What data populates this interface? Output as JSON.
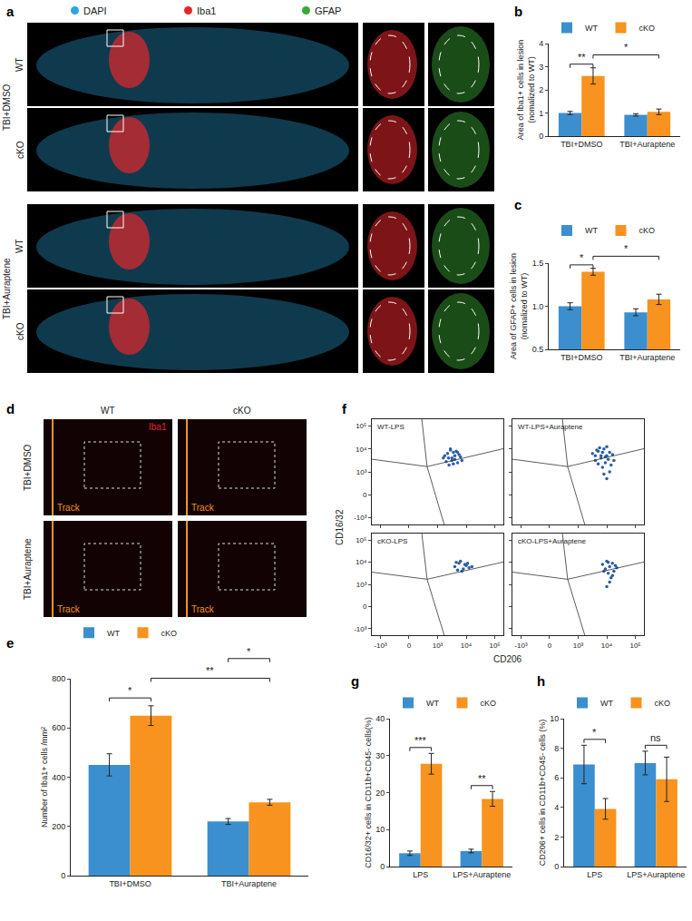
{
  "chart_data": [
    {
      "panel": "b",
      "type": "bar",
      "y_label": "Area of Iba1+ cells in lesion\n(nomalized to WT)",
      "categories": [
        "TBI+DMSO",
        "TBI+Auraptene"
      ],
      "series": [
        {
          "name": "WT",
          "color": "#3b8fcf",
          "values": [
            1.0,
            0.92
          ],
          "errors": [
            0.07,
            0.05
          ]
        },
        {
          "name": "cKO",
          "color": "#f7931e",
          "values": [
            2.6,
            1.05
          ],
          "errors": [
            0.35,
            0.12
          ]
        }
      ],
      "ylim": [
        0,
        4
      ],
      "yticks": [
        0,
        1,
        2,
        3,
        4
      ],
      "grid": false,
      "legend": "top",
      "annotations": [
        {
          "text": "**",
          "between": [
            [
              "WT",
              "TBI+DMSO"
            ],
            [
              "cKO",
              "TBI+DMSO"
            ]
          ]
        },
        {
          "text": "*",
          "between": [
            [
              "cKO",
              "TBI+DMSO"
            ],
            [
              "cKO",
              "TBI+Auraptene"
            ]
          ]
        }
      ]
    },
    {
      "panel": "c",
      "type": "bar",
      "y_label": "Area of GFAP+ cells in lesion\n(nomalized to WT)",
      "categories": [
        "TBI+DMSO",
        "TBI+Auraptene"
      ],
      "series": [
        {
          "name": "WT",
          "color": "#3b8fcf",
          "values": [
            1.0,
            0.93
          ],
          "errors": [
            0.04,
            0.04
          ]
        },
        {
          "name": "cKO",
          "color": "#f7931e",
          "values": [
            1.4,
            1.08
          ],
          "errors": [
            0.04,
            0.06
          ]
        }
      ],
      "ylim": [
        0.5,
        1.5
      ],
      "yticks": [
        0.5,
        {
          "value": 1,
          "label": "1.0"
        },
        1.5
      ],
      "grid": false,
      "legend": "top",
      "annotations": [
        {
          "text": "*",
          "between": [
            [
              "WT",
              "TBI+DMSO"
            ],
            [
              "cKO",
              "TBI+DMSO"
            ]
          ]
        },
        {
          "text": "*",
          "between": [
            [
              "cKO",
              "TBI+DMSO"
            ],
            [
              "cKO",
              "TBI+Auraptene"
            ]
          ]
        }
      ]
    },
    {
      "panel": "e",
      "type": "bar",
      "y_label": "Number of Iba1+ cells /mm²",
      "categories": [
        "TBI+DMSO",
        "TBI+Auraptene"
      ],
      "series": [
        {
          "name": "WT",
          "color": "#3b8fcf",
          "values": [
            450,
            220
          ],
          "errors": [
            45,
            12
          ]
        },
        {
          "name": "cKO",
          "color": "#f7931e",
          "values": [
            650,
            298
          ],
          "errors": [
            40,
            12
          ]
        }
      ],
      "ylim": [
        0,
        800
      ],
      "yticks": [
        0,
        200,
        400,
        600,
        800
      ],
      "grid": false,
      "legend": "top",
      "annotations": [
        {
          "text": "*",
          "between": [
            [
              "WT",
              "TBI+DMSO"
            ],
            [
              "cKO",
              "TBI+DMSO"
            ]
          ]
        },
        {
          "text": "**",
          "between": [
            [
              "cKO",
              "TBI+DMSO"
            ],
            [
              "cKO",
              "TBI+Auraptene"
            ]
          ]
        },
        {
          "text": "*",
          "between": [
            [
              "WT",
              "TBI+Auraptene"
            ],
            [
              "cKO",
              "TBI+Auraptene"
            ]
          ]
        }
      ]
    },
    {
      "panel": "f",
      "type": "scatter",
      "x_label": "CD206",
      "y_label": "CD16/32",
      "xlim": [
        -1.3,
        3.3
      ],
      "ylim": [
        -1.3,
        3.3
      ],
      "xticks": [
        {
          "value": -1,
          "label": "-10³"
        },
        0,
        {
          "value": 1,
          "label": "10³"
        },
        {
          "value": 2,
          "label": "10⁴"
        },
        {
          "value": 3,
          "label": "10⁵"
        }
      ],
      "yticks": [
        {
          "value": -1,
          "label": "-10³"
        },
        0,
        {
          "value": 1,
          "label": "10³"
        },
        {
          "value": 2,
          "label": "10⁴"
        },
        {
          "value": 3,
          "label": "10⁵"
        }
      ],
      "grid": false,
      "marker": "circle",
      "color": "#2a5caa",
      "subplots": [
        {
          "title": "WT-LPS",
          "x": [
            1.2,
            1.35,
            1.5,
            1.6,
            1.45,
            1.7,
            1.8,
            1.55,
            1.3,
            1.65,
            1.4,
            1.75,
            1.5,
            1.6,
            1.25,
            1.85,
            1.45,
            1.7,
            1.55,
            1.38
          ],
          "y": [
            1.6,
            1.8,
            1.5,
            1.7,
            1.95,
            1.4,
            1.65,
            1.85,
            1.45,
            1.9,
            1.3,
            1.75,
            1.6,
            1.55,
            1.7,
            1.5,
            2.0,
            1.85,
            1.35,
            1.6
          ]
        },
        {
          "title": "WT-LPS+Auraptene",
          "x": [
            1.5,
            1.7,
            1.9,
            2.0,
            1.8,
            2.1,
            1.6,
            1.95,
            2.2,
            1.75,
            1.85,
            2.05,
            1.65,
            1.9,
            2.15,
            1.8,
            2.0,
            1.7,
            1.95,
            2.1,
            1.85,
            2.25,
            1.6,
            2.0
          ],
          "y": [
            1.8,
            1.9,
            2.0,
            1.7,
            1.6,
            1.85,
            1.5,
            1.4,
            1.75,
            2.05,
            1.2,
            1.55,
            1.95,
            0.9,
            1.3,
            1.7,
            2.1,
            1.35,
            1.65,
            1.0,
            1.85,
            1.5,
            1.7,
            0.7
          ]
        },
        {
          "title": "cKO-LPS",
          "x": [
            1.6,
            1.75,
            1.9,
            2.0,
            1.8,
            2.1,
            1.7,
            1.95,
            2.2,
            1.85,
            1.65,
            2.05
          ],
          "y": [
            1.8,
            1.95,
            1.7,
            1.85,
            2.05,
            1.75,
            1.65,
            1.9,
            1.8,
            1.6,
            2.0,
            1.95
          ]
        },
        {
          "title": "cKO-LPS+Auraptene",
          "x": [
            1.85,
            2.0,
            2.1,
            2.2,
            1.95,
            2.3,
            2.05,
            2.15,
            1.9,
            2.25,
            2.1,
            2.0,
            2.35,
            2.2,
            2.05
          ],
          "y": [
            1.9,
            2.05,
            1.8,
            1.95,
            1.7,
            1.85,
            1.5,
            1.3,
            1.6,
            1.6,
            1.1,
            0.9,
            1.75,
            1.4,
            2.0
          ]
        }
      ]
    },
    {
      "panel": "g",
      "type": "bar",
      "y_label": "CD16/32+ cells in CD11b+CD45- cells(%)",
      "categories": [
        "LPS",
        "LPS+Auraptene"
      ],
      "series": [
        {
          "name": "WT",
          "color": "#3b8fcf",
          "values": [
            3.6,
            4.2
          ],
          "errors": [
            0.6,
            0.5
          ]
        },
        {
          "name": "cKO",
          "color": "#f7931e",
          "values": [
            27.8,
            18.3
          ],
          "errors": [
            2.8,
            2.0
          ]
        }
      ],
      "ylim": [
        0,
        40
      ],
      "yticks": [
        0,
        10,
        20,
        30,
        40
      ],
      "grid": false,
      "legend": "top",
      "annotations": [
        {
          "text": "***",
          "between": [
            [
              "WT",
              "LPS"
            ],
            [
              "cKO",
              "LPS"
            ]
          ]
        },
        {
          "text": "**",
          "between": [
            [
              "WT",
              "LPS+Auraptene"
            ],
            [
              "cKO",
              "LPS+Auraptene"
            ]
          ]
        }
      ]
    },
    {
      "panel": "h",
      "type": "bar",
      "y_label": "CD206+ cells in CD11b+CD45- cells (%)",
      "categories": [
        "LPS",
        "LPS+Auraptene"
      ],
      "series": [
        {
          "name": "WT",
          "color": "#3b8fcf",
          "values": [
            6.9,
            7.0
          ],
          "errors": [
            1.3,
            0.8
          ]
        },
        {
          "name": "cKO",
          "color": "#f7931e",
          "values": [
            3.9,
            5.9
          ],
          "errors": [
            0.7,
            1.5
          ]
        }
      ],
      "ylim": [
        0,
        10
      ],
      "yticks": [
        0,
        2,
        4,
        6,
        8,
        10
      ],
      "grid": false,
      "legend": "top",
      "annotations": [
        {
          "text": "*",
          "between": [
            [
              "WT",
              "LPS"
            ],
            [
              "cKO",
              "LPS"
            ]
          ]
        },
        {
          "text": "ns",
          "between": [
            [
              "WT",
              "LPS+Auraptene"
            ],
            [
              "cKO",
              "LPS+Auraptene"
            ]
          ]
        }
      ]
    }
  ],
  "image_panels": [
    {
      "label": "a",
      "channels": [
        {
          "name": "DAPI",
          "color": "#2aa6e0"
        },
        {
          "name": "Iba1",
          "color": "#e3262b"
        },
        {
          "name": "GFAP",
          "color": "#39a935"
        }
      ],
      "groups": [
        {
          "label": "TBI+DMSO",
          "rows": [
            "WT",
            "cKO"
          ]
        },
        {
          "label": "TBI+Auraptene",
          "rows": [
            "WT",
            "cKO"
          ]
        }
      ]
    },
    {
      "label": "d",
      "columns": [
        "WT",
        "cKO"
      ],
      "stain": "Iba1",
      "groups": [
        "TBI+DMSO",
        "TBI+Auraptene"
      ],
      "marker_text": "Track"
    }
  ]
}
